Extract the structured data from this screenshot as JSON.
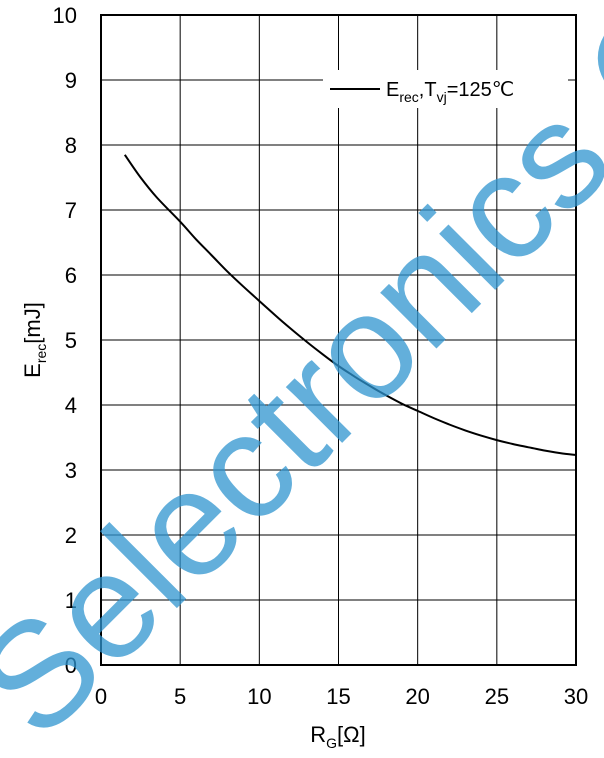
{
  "chart_data": {
    "type": "line",
    "xlabel": {
      "main": "R",
      "sub": "G",
      "unit": "[Ω]"
    },
    "ylabel": {
      "main": "E",
      "sub": "rec",
      "unit": "[mJ]"
    },
    "xlim": [
      0,
      30
    ],
    "ylim": [
      0,
      10
    ],
    "x_ticks": [
      0,
      5,
      10,
      15,
      20,
      25,
      30
    ],
    "y_ticks": [
      0,
      1,
      2,
      3,
      4,
      5,
      6,
      7,
      8,
      9,
      10
    ],
    "grid": true,
    "legend_position": "top-right",
    "series": [
      {
        "legend": {
          "main": "E",
          "sub": "rec",
          "sep": ",",
          "main2": "T",
          "sub2": "vj",
          "cond": "=125℃"
        },
        "color": "#000000",
        "x": [
          1.5,
          2.5,
          3.5,
          5,
          6,
          7,
          8,
          9,
          10,
          11,
          12,
          13,
          14,
          15,
          16,
          17,
          18,
          19,
          20,
          21,
          22,
          23,
          24,
          25,
          26,
          27,
          28,
          29,
          30
        ],
        "y": [
          7.85,
          7.5,
          7.2,
          6.82,
          6.55,
          6.3,
          6.05,
          5.82,
          5.6,
          5.38,
          5.17,
          4.97,
          4.78,
          4.6,
          4.44,
          4.29,
          4.15,
          4.02,
          3.91,
          3.8,
          3.7,
          3.61,
          3.53,
          3.46,
          3.4,
          3.35,
          3.3,
          3.26,
          3.23
        ]
      }
    ]
  },
  "watermark": {
    "text": "Selectronics Co. LTD",
    "color": "#2f95d0"
  }
}
